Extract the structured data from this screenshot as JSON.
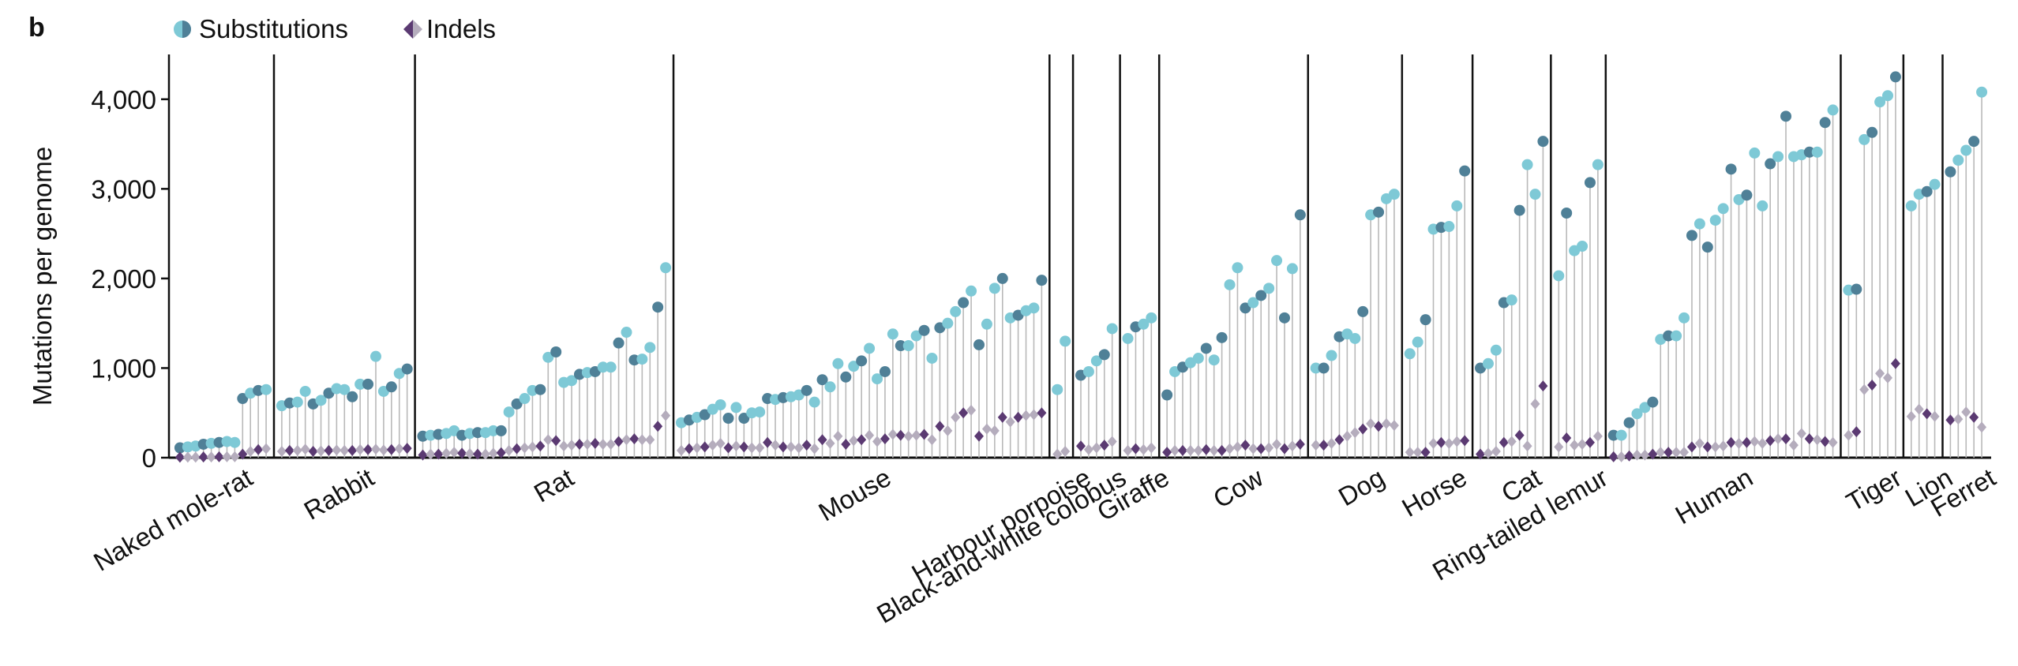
{
  "panel_label": "b",
  "colors": {
    "sub_light": "#7ec9d6",
    "sub_dark": "#4f8097",
    "indel_light": "#b5adbd",
    "indel_dark": "#5b3a72",
    "stem": "#b9b9b9",
    "axis": "#111111"
  },
  "chart_data": {
    "type": "lollipop",
    "title": "",
    "ylabel": "Mutations per genome",
    "ylim": [
      0,
      4500
    ],
    "yticks": [
      0,
      1000,
      2000,
      3000,
      4000
    ],
    "ytick_labels": [
      "0",
      "1,000",
      "2,000",
      "3,000",
      "4,000"
    ],
    "legend": [
      {
        "name": "Substitutions",
        "marker": "circle"
      },
      {
        "name": "Indels",
        "marker": "diamond"
      }
    ],
    "legend_position": "top-left",
    "species": [
      {
        "name": "Naked mole-rat",
        "substitutions": [
          110,
          120,
          130,
          150,
          160,
          170,
          180,
          170,
          660,
          720,
          750,
          760
        ],
        "indels": [
          5,
          5,
          5,
          8,
          8,
          10,
          10,
          10,
          40,
          70,
          90,
          100
        ]
      },
      {
        "name": "Rabbit",
        "substitutions": [
          580,
          610,
          620,
          740,
          600,
          640,
          720,
          770,
          760,
          680,
          820,
          820,
          1130,
          740,
          790,
          940,
          990
        ],
        "indels": [
          70,
          80,
          80,
          95,
          70,
          75,
          80,
          85,
          80,
          80,
          90,
          90,
          95,
          85,
          90,
          100,
          105
        ]
      },
      {
        "name": "Rat",
        "substitutions": [
          240,
          250,
          260,
          270,
          300,
          250,
          270,
          280,
          280,
          300,
          300,
          510,
          600,
          660,
          750,
          760,
          1120,
          1180,
          840,
          860,
          930,
          950,
          960,
          1010,
          1010,
          1280,
          1400,
          1090,
          1100,
          1230,
          1680,
          2120
        ],
        "indels": [
          30,
          40,
          40,
          50,
          60,
          50,
          45,
          40,
          40,
          50,
          55,
          80,
          100,
          110,
          120,
          130,
          200,
          190,
          130,
          140,
          150,
          150,
          160,
          150,
          150,
          180,
          200,
          210,
          200,
          200,
          350,
          470
        ]
      },
      {
        "name": "Mouse",
        "substitutions": [
          390,
          420,
          450,
          480,
          540,
          590,
          440,
          560,
          440,
          500,
          510,
          660,
          650,
          670,
          680,
          700,
          750,
          620,
          870,
          790,
          1050,
          900,
          1020,
          1080,
          1220,
          880,
          960,
          1380,
          1250,
          1250,
          1360,
          1420,
          1110,
          1450,
          1500,
          1630,
          1730,
          1860,
          1260,
          1490,
          1890,
          2000,
          1560,
          1590,
          1640,
          1670,
          1980
        ],
        "indels": [
          80,
          100,
          110,
          120,
          140,
          160,
          110,
          130,
          120,
          110,
          110,
          170,
          140,
          120,
          120,
          110,
          140,
          100,
          200,
          160,
          240,
          150,
          190,
          200,
          250,
          180,
          210,
          260,
          250,
          240,
          250,
          260,
          200,
          350,
          300,
          450,
          500,
          530,
          240,
          320,
          300,
          450,
          400,
          450,
          470,
          480,
          500
        ]
      },
      {
        "name": "Harbour porpoise",
        "substitutions": [
          760,
          1300
        ],
        "indels": [
          40,
          70
        ]
      },
      {
        "name": "Black-and-white colobus",
        "substitutions": [
          920,
          960,
          1080,
          1150,
          1440
        ],
        "indels": [
          130,
          90,
          110,
          140,
          180
        ]
      },
      {
        "name": "Giraffe",
        "substitutions": [
          1330,
          1460,
          1490,
          1560
        ],
        "indels": [
          80,
          100,
          90,
          110
        ]
      },
      {
        "name": "Cow",
        "substitutions": [
          700,
          960,
          1010,
          1060,
          1110,
          1220,
          1090,
          1340,
          1930,
          2120,
          1670,
          1730,
          1810,
          1890,
          2200,
          1560,
          2110,
          2710
        ],
        "indels": [
          60,
          80,
          80,
          80,
          80,
          90,
          80,
          80,
          100,
          120,
          140,
          100,
          100,
          110,
          150,
          100,
          130,
          150
        ]
      },
      {
        "name": "Dog",
        "substitutions": [
          1000,
          1000,
          1140,
          1350,
          1380,
          1330,
          1630,
          2710,
          2740,
          2890,
          2940
        ],
        "indels": [
          140,
          140,
          160,
          200,
          240,
          280,
          320,
          380,
          350,
          380,
          360
        ]
      },
      {
        "name": "Horse",
        "substitutions": [
          1160,
          1290,
          1540,
          2550,
          2570,
          2580,
          2810,
          3200
        ],
        "indels": [
          60,
          60,
          60,
          160,
          170,
          160,
          180,
          190
        ]
      },
      {
        "name": "Cat",
        "substitutions": [
          1000,
          1050,
          1200,
          1730,
          1760,
          2760,
          3270,
          2940,
          3530
        ],
        "indels": [
          40,
          50,
          70,
          170,
          180,
          250,
          130,
          600,
          800
        ]
      },
      {
        "name": "Ring-tailed lemur",
        "substitutions": [
          2030,
          2730,
          2310,
          2360,
          3070,
          3270
        ],
        "indels": [
          120,
          220,
          140,
          150,
          170,
          240
        ]
      },
      {
        "name": "Human",
        "substitutions": [
          250,
          250,
          390,
          490,
          560,
          620,
          1320,
          1360,
          1360,
          1560,
          2480,
          2610,
          2350,
          2650,
          2780,
          3220,
          2880,
          2930,
          3400,
          2810,
          3280,
          3360,
          3810,
          3360,
          3380,
          3410,
          3410,
          3740,
          3880
        ],
        "indels": [
          10,
          10,
          20,
          30,
          30,
          40,
          60,
          60,
          60,
          60,
          120,
          160,
          120,
          120,
          130,
          170,
          160,
          170,
          180,
          160,
          190,
          210,
          210,
          140,
          270,
          210,
          200,
          180,
          170
        ]
      },
      {
        "name": "Tiger",
        "substitutions": [
          1870,
          1880,
          3550,
          3630,
          3970,
          4040,
          4250
        ],
        "indels": [
          250,
          290,
          760,
          810,
          940,
          890,
          1050
        ]
      },
      {
        "name": "Lion",
        "substitutions": [
          2810,
          2940,
          2970,
          3050
        ],
        "indels": [
          460,
          540,
          490,
          460
        ]
      },
      {
        "name": "Ferret",
        "substitutions": [
          3190,
          3320,
          3430,
          3530,
          4080
        ],
        "indels": [
          420,
          430,
          510,
          450,
          340
        ]
      }
    ]
  }
}
